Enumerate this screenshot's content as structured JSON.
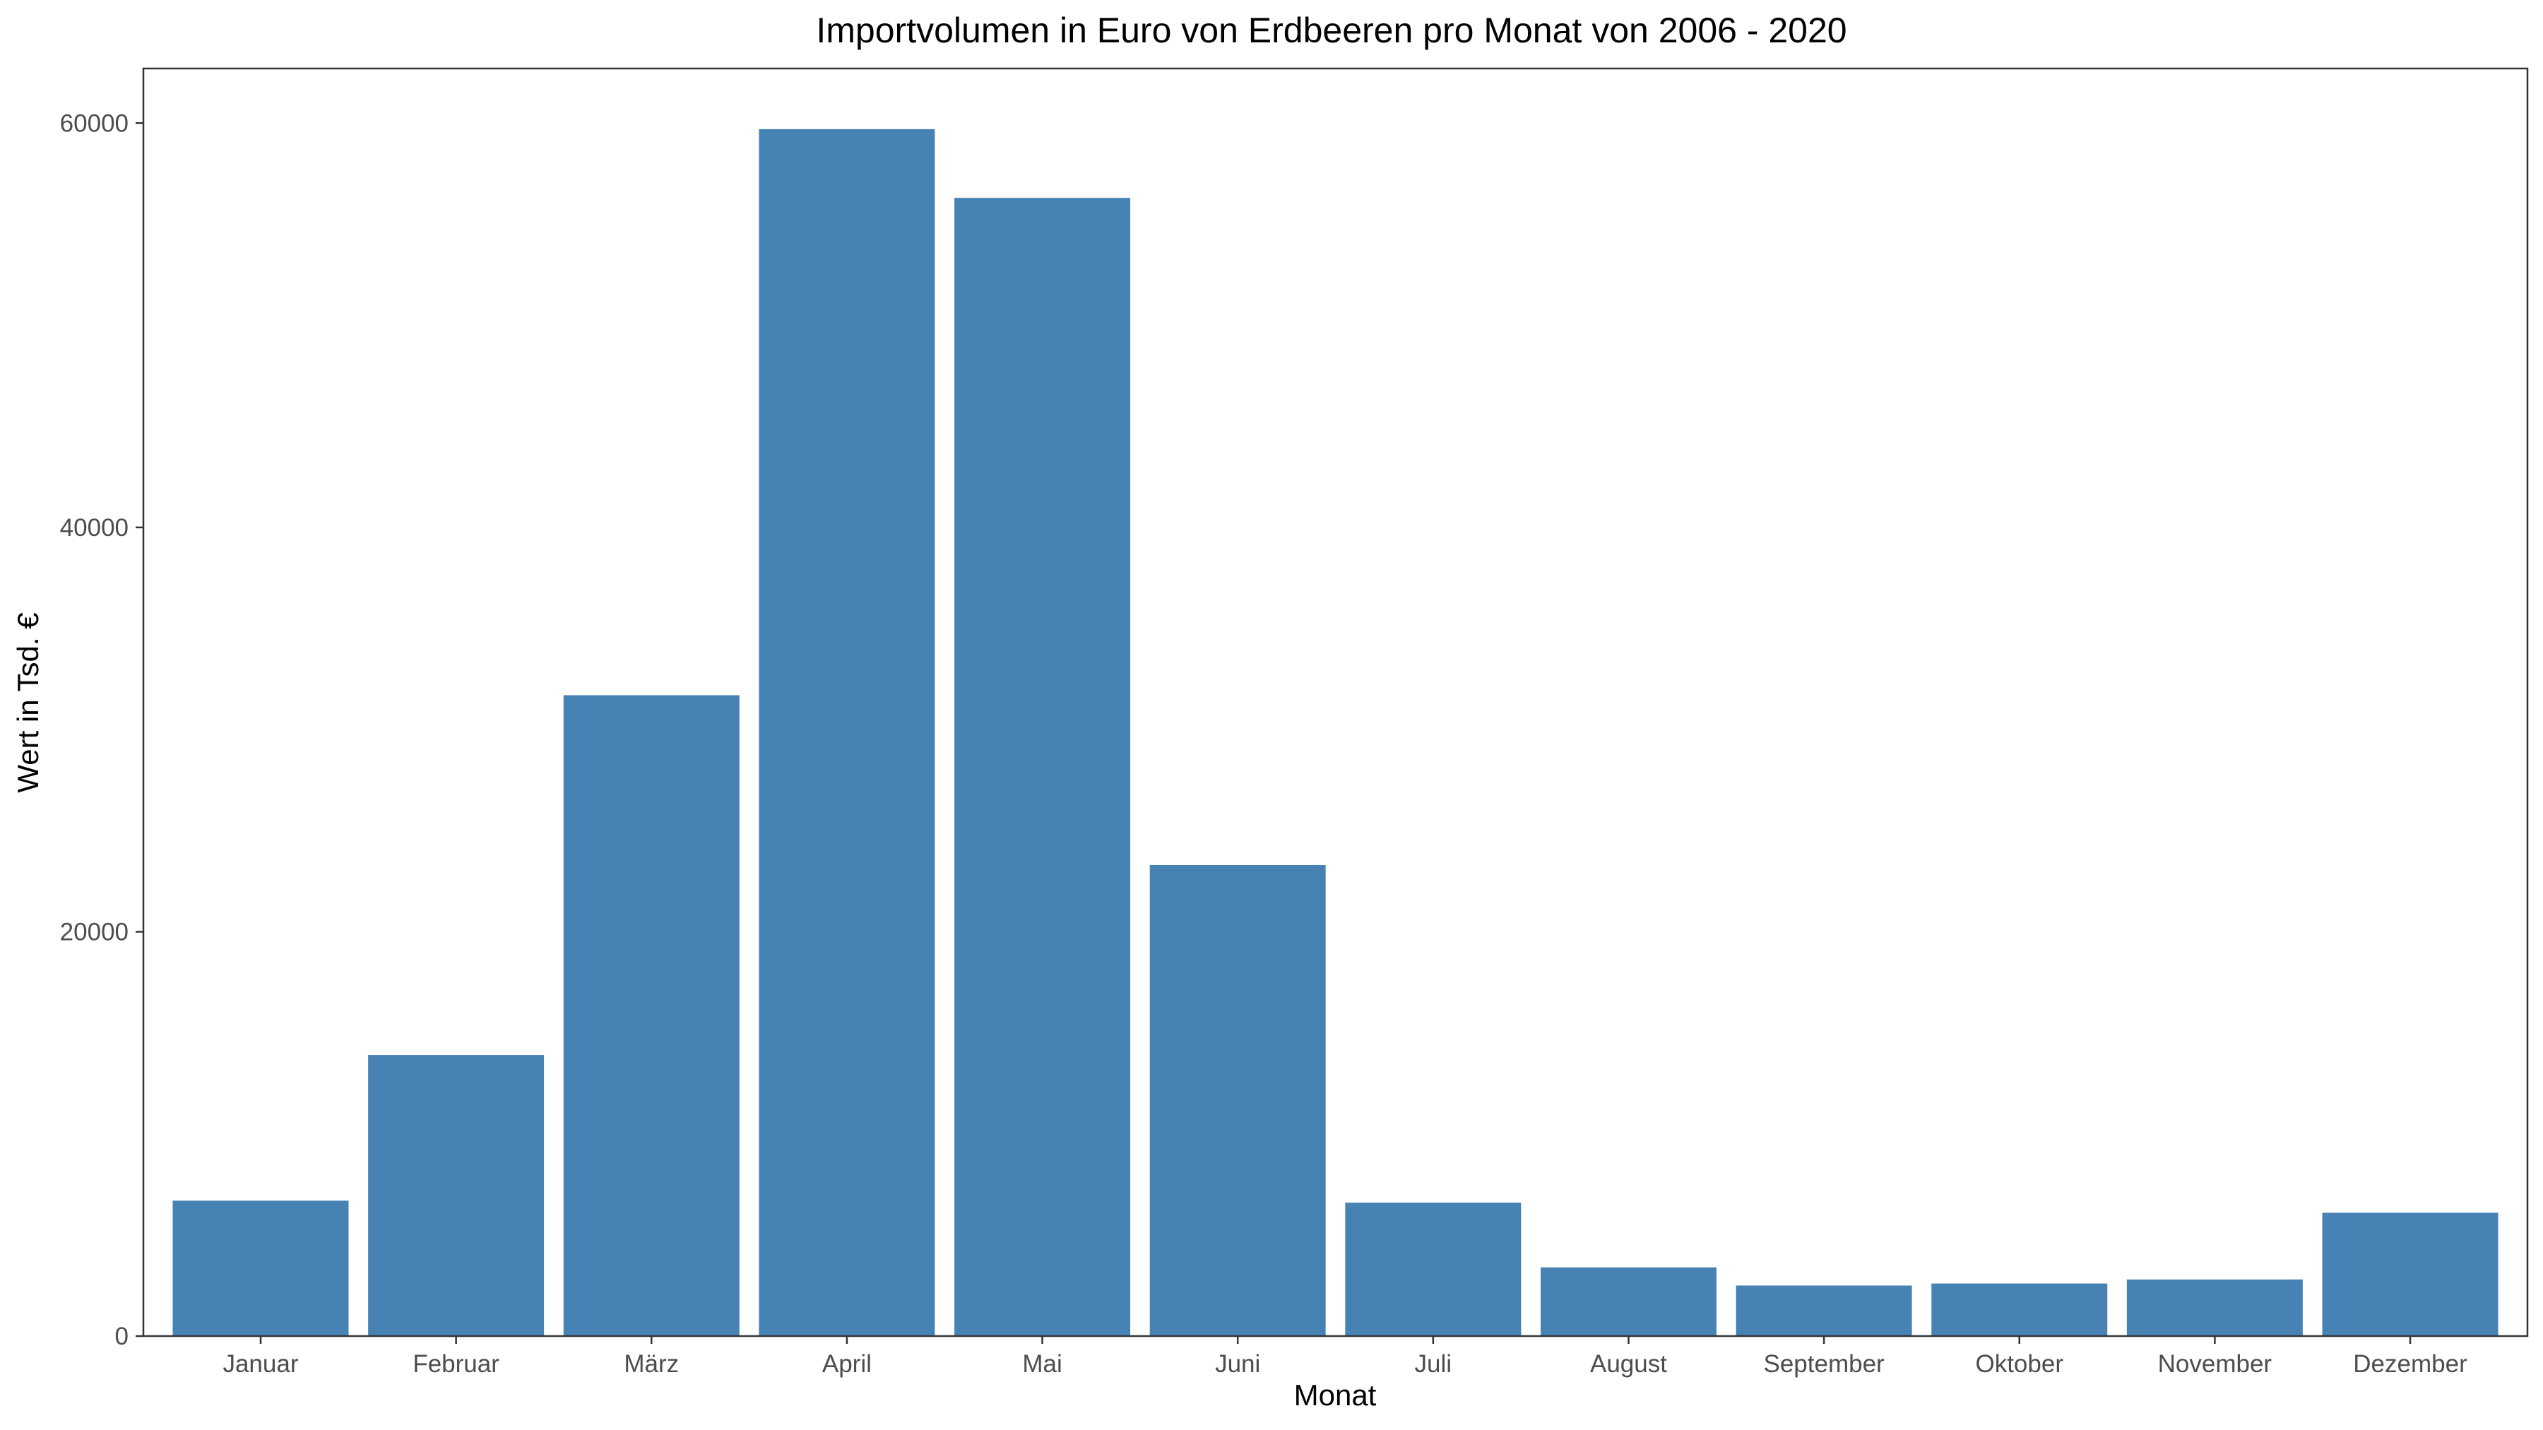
{
  "chart_data": {
    "type": "bar",
    "title": "Importvolumen in Euro von Erdbeeren pro Monat von 2006 - 2020",
    "xlabel": "Monat",
    "ylabel": "Wert in Tsd. €",
    "categories": [
      "Januar",
      "Februar",
      "März",
      "April",
      "Mai",
      "Juni",
      "Juli",
      "August",
      "September",
      "Oktober",
      "November",
      "Dezember"
    ],
    "values": [
      6700,
      13900,
      31700,
      59700,
      56300,
      23300,
      6600,
      3400,
      2500,
      2600,
      2800,
      6100
    ],
    "ylim": [
      0,
      62700
    ],
    "yticks": [
      0,
      20000,
      40000,
      60000
    ],
    "bar_color": "#4682B4",
    "grid": false,
    "legend": "none"
  }
}
